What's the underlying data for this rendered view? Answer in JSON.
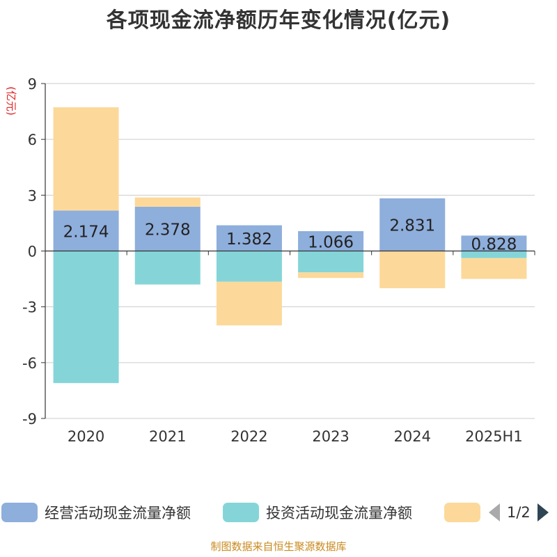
{
  "title": "各项现金流净额历年变化情况(亿元)",
  "source": "制图数据来自恒生聚源数据库",
  "legend": {
    "items": [
      {
        "label": "经营活动现金流量净额",
        "color": "#8eaedc"
      },
      {
        "label": "投资活动现金流量净额",
        "color": "#85d5d8"
      },
      {
        "label": "",
        "color": "#fcd99a"
      }
    ],
    "page": "1/2"
  },
  "chart_data": {
    "type": "bar",
    "stacked": true,
    "ylabel": "(亿元)",
    "ylim": [
      -9,
      9
    ],
    "yticks": [
      9,
      6,
      3,
      0,
      -3,
      -6,
      -9
    ],
    "categories": [
      "2020",
      "2021",
      "2022",
      "2023",
      "2024",
      "2025H1"
    ],
    "grid": true,
    "legend_position": "bottom",
    "series": [
      {
        "name": "经营活动现金流量净额",
        "color": "#8eaedc",
        "values": [
          2.174,
          2.378,
          1.382,
          1.066,
          2.831,
          0.828
        ],
        "labels": [
          "2.174",
          "2.378",
          "1.382",
          "1.066",
          "2.831",
          "0.828"
        ]
      },
      {
        "name": "投资活动现金流量净额",
        "color": "#85d5d8",
        "values": [
          -7.1,
          -1.8,
          -1.65,
          -1.15,
          0,
          -0.38
        ]
      },
      {
        "color": "#fcd99a",
        "values": [
          5.55,
          0.5,
          -2.35,
          -0.3,
          -2.0,
          -1.12
        ]
      }
    ]
  }
}
